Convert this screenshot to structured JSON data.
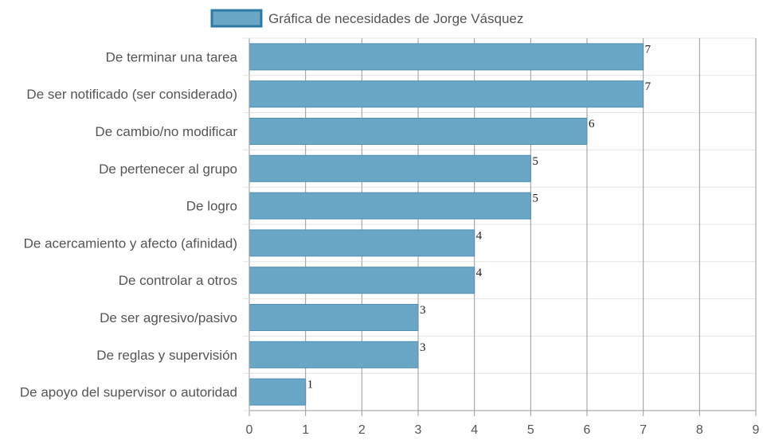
{
  "chart_data": {
    "type": "bar",
    "orientation": "horizontal",
    "categories": [
      "De terminar una tarea",
      "De ser notificado (ser considerado)",
      "De cambio/no modificar",
      "De pertenecer al grupo",
      "De logro",
      "De acercamiento y afecto (afinidad)",
      "De controlar a otros",
      "De ser agresivo/pasivo",
      "De reglas y supervisión",
      "De apoyo del supervisor o autoridad"
    ],
    "series": [
      {
        "name": "Gráfica de necesidades de Jorge Vásquez",
        "values": [
          7,
          7,
          6,
          5,
          5,
          4,
          4,
          3,
          3,
          1
        ],
        "color": "#6aa6c6",
        "border_color": "#2d7aa6"
      }
    ],
    "xlim": [
      0,
      9
    ],
    "x_ticks": [
      "0",
      "1",
      "2",
      "3",
      "4",
      "5",
      "6",
      "7",
      "8",
      "9"
    ],
    "grid": true,
    "legend_position": "top-center",
    "data_labels": true,
    "title": "",
    "xlabel": "",
    "ylabel": ""
  }
}
